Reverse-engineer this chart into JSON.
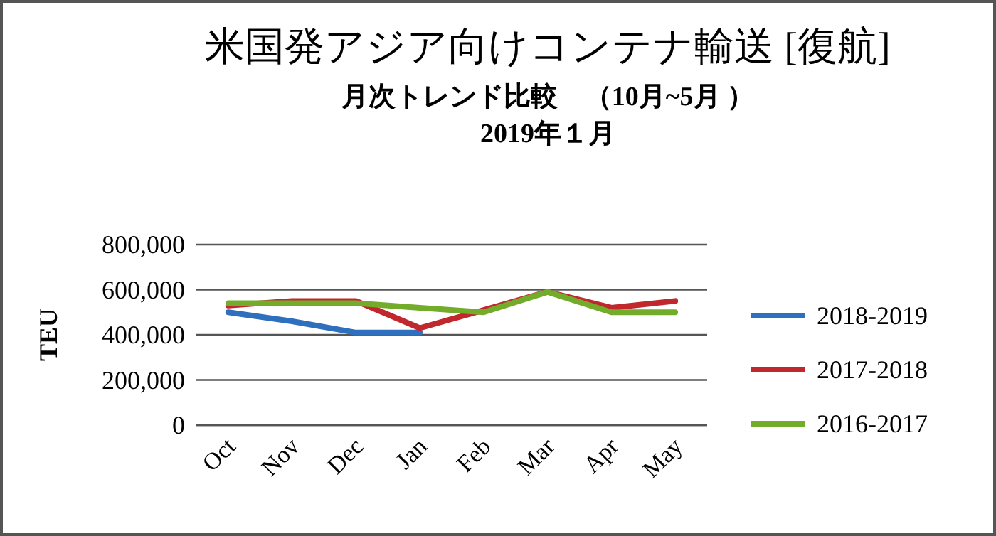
{
  "chart_data": {
    "type": "line",
    "title": "米国発アジア向けコンテナ輸送 [復航]",
    "subtitle": "月次トレンド比較　（10月~5月 ）\n2019年１月",
    "ylabel": "TEU",
    "categories": [
      "Oct",
      "Nov",
      "Dec",
      "Jan",
      "Feb",
      "Mar",
      "Apr",
      "May"
    ],
    "series": [
      {
        "name": "2018-2019",
        "color": "#2e6fbe",
        "values": [
          500000,
          460000,
          410000,
          410000,
          null,
          null,
          null,
          null
        ]
      },
      {
        "name": "2017-2018",
        "color": "#c0282d",
        "values": [
          530000,
          550000,
          550000,
          430000,
          510000,
          590000,
          520000,
          550000
        ]
      },
      {
        "name": "2016-2017",
        "color": "#72ac2a",
        "values": [
          540000,
          540000,
          540000,
          520000,
          500000,
          590000,
          500000,
          500000
        ]
      }
    ],
    "ylim": [
      0,
      800000
    ],
    "yticks": [
      0,
      {
        "value": 200000,
        "label": "200,000"
      },
      {
        "value": 400000,
        "label": "400,000"
      },
      {
        "value": 600000,
        "label": "600,000"
      },
      {
        "value": 800000,
        "label": "800,000"
      }
    ],
    "grid": "y",
    "legend": "right",
    "marker": "none",
    "line_style": "solid"
  }
}
